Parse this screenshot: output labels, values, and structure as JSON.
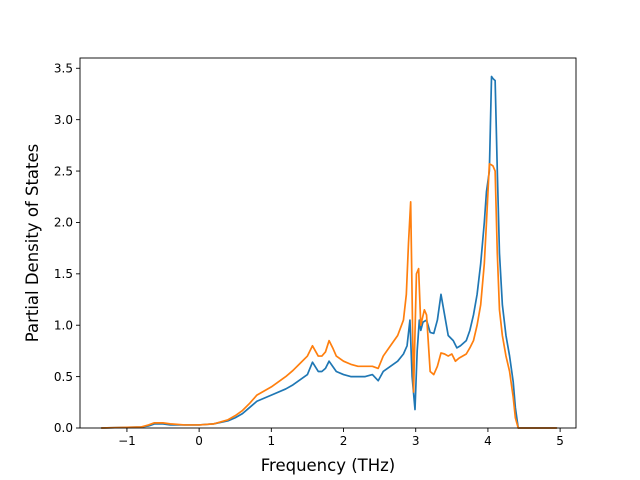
{
  "chart_data": {
    "type": "line",
    "title": "",
    "xlabel": "Frequency (THz)",
    "ylabel": "Partial Density of States",
    "xlim": [
      -1.65,
      5.22
    ],
    "ylim": [
      0.0,
      3.6
    ],
    "grid": false,
    "legend": "none",
    "x_ticks": [
      -1,
      0,
      1,
      2,
      3,
      4,
      5
    ],
    "y_ticks": [
      0.0,
      0.5,
      1.0,
      1.5,
      2.0,
      2.5,
      3.0,
      3.5
    ],
    "x_tick_labels": [
      "−1",
      "0",
      "1",
      "2",
      "3",
      "4",
      "5"
    ],
    "y_tick_labels": [
      "0.0",
      "0.5",
      "1.0",
      "1.5",
      "2.0",
      "2.5",
      "3.0",
      "3.5"
    ],
    "series": [
      {
        "color": "#1f77b4",
        "x": [
          -1.35,
          -0.8,
          -0.7,
          -0.62,
          -0.5,
          -0.4,
          -0.2,
          0.0,
          0.2,
          0.4,
          0.5,
          0.6,
          0.7,
          0.8,
          1.0,
          1.2,
          1.3,
          1.4,
          1.5,
          1.57,
          1.65,
          1.7,
          1.75,
          1.8,
          1.85,
          1.9,
          2.0,
          2.1,
          2.2,
          2.3,
          2.4,
          2.48,
          2.55,
          2.65,
          2.75,
          2.83,
          2.88,
          2.92,
          2.95,
          2.99,
          3.02,
          3.05,
          3.07,
          3.1,
          3.15,
          3.2,
          3.25,
          3.3,
          3.35,
          3.4,
          3.45,
          3.52,
          3.57,
          3.62,
          3.7,
          3.75,
          3.8,
          3.85,
          3.9,
          3.95,
          3.98,
          4.02,
          4.05,
          4.07,
          4.1,
          4.13,
          4.16,
          4.2,
          4.25,
          4.3,
          4.35,
          4.38,
          4.42,
          4.5,
          4.7,
          4.95
        ],
        "values": [
          0.0,
          0.01,
          0.02,
          0.04,
          0.04,
          0.03,
          0.03,
          0.03,
          0.04,
          0.07,
          0.1,
          0.14,
          0.2,
          0.26,
          0.32,
          0.38,
          0.42,
          0.47,
          0.52,
          0.64,
          0.55,
          0.55,
          0.58,
          0.65,
          0.6,
          0.55,
          0.52,
          0.5,
          0.5,
          0.5,
          0.52,
          0.46,
          0.55,
          0.6,
          0.65,
          0.72,
          0.8,
          1.05,
          0.5,
          0.18,
          0.75,
          1.05,
          0.95,
          1.03,
          1.05,
          0.93,
          0.92,
          1.05,
          1.3,
          1.1,
          0.9,
          0.85,
          0.78,
          0.8,
          0.85,
          0.95,
          1.1,
          1.3,
          1.6,
          2.0,
          2.3,
          2.5,
          3.42,
          3.4,
          3.38,
          2.5,
          1.7,
          1.2,
          0.9,
          0.7,
          0.45,
          0.2,
          0.0,
          0.0,
          0.0,
          0.0
        ]
      },
      {
        "color": "#ff7f0e",
        "x": [
          -1.35,
          -0.8,
          -0.7,
          -0.62,
          -0.5,
          -0.4,
          -0.2,
          0.0,
          0.2,
          0.4,
          0.5,
          0.6,
          0.7,
          0.8,
          1.0,
          1.2,
          1.3,
          1.4,
          1.5,
          1.57,
          1.65,
          1.7,
          1.75,
          1.8,
          1.85,
          1.9,
          2.0,
          2.1,
          2.2,
          2.3,
          2.4,
          2.48,
          2.55,
          2.65,
          2.75,
          2.83,
          2.87,
          2.9,
          2.93,
          2.97,
          3.01,
          3.04,
          3.07,
          3.12,
          3.15,
          3.2,
          3.25,
          3.3,
          3.35,
          3.4,
          3.45,
          3.5,
          3.55,
          3.6,
          3.7,
          3.75,
          3.8,
          3.85,
          3.9,
          3.95,
          3.98,
          4.02,
          4.05,
          4.07,
          4.1,
          4.13,
          4.16,
          4.2,
          4.25,
          4.3,
          4.35,
          4.38,
          4.42,
          4.5,
          4.7,
          4.95
        ],
        "values": [
          0.0,
          0.01,
          0.03,
          0.05,
          0.05,
          0.04,
          0.03,
          0.03,
          0.04,
          0.08,
          0.12,
          0.17,
          0.24,
          0.32,
          0.4,
          0.5,
          0.56,
          0.63,
          0.7,
          0.8,
          0.7,
          0.7,
          0.74,
          0.85,
          0.78,
          0.7,
          0.65,
          0.62,
          0.6,
          0.6,
          0.6,
          0.58,
          0.7,
          0.8,
          0.9,
          1.05,
          1.3,
          1.8,
          2.2,
          0.35,
          1.5,
          1.55,
          1.0,
          1.15,
          1.1,
          0.55,
          0.52,
          0.6,
          0.73,
          0.72,
          0.7,
          0.72,
          0.65,
          0.68,
          0.72,
          0.78,
          0.85,
          1.0,
          1.2,
          1.6,
          2.0,
          2.57,
          2.56,
          2.55,
          2.5,
          1.7,
          1.15,
          0.9,
          0.7,
          0.55,
          0.3,
          0.1,
          0.0,
          0.0,
          0.0,
          0.0
        ]
      }
    ]
  }
}
